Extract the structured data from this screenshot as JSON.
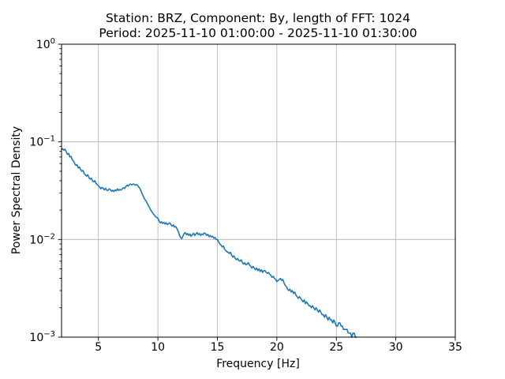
{
  "chart_data": {
    "type": "line",
    "title": "Station: BRZ, Component: By, length of FFT: 1024",
    "subtitle": "Period: 2025-11-10 01:00:00 - 2025-11-10 01:30:00",
    "xlabel": "Frequency [Hz]",
    "ylabel": "Power Spectral Density",
    "xscale": "linear",
    "yscale": "log",
    "xlim": [
      1.9,
      35
    ],
    "ylim": [
      0.001,
      1.0
    ],
    "grid": true,
    "legend": false,
    "xticks": [
      5,
      10,
      15,
      20,
      25,
      30,
      35
    ],
    "yticks": [
      1.0,
      0.1,
      0.01,
      0.001
    ],
    "line_color": "#1f77b4",
    "grid_color": "#b0b0b0",
    "background_color": "#ffffff",
    "series": [
      {
        "name": "psd",
        "x_start": 1.9,
        "x_step": 0.1,
        "values": [
          0.083,
          0.085,
          0.082,
          0.084,
          0.079,
          0.0745,
          0.076,
          0.07,
          0.071,
          0.0655,
          0.064,
          0.06,
          0.0575,
          0.0585,
          0.054,
          0.0555,
          0.052,
          0.05,
          0.051,
          0.0475,
          0.046,
          0.0445,
          0.046,
          0.043,
          0.0415,
          0.0425,
          0.04,
          0.039,
          0.04,
          0.0375,
          0.0365,
          0.0355,
          0.0345,
          0.033,
          0.0342,
          0.0335,
          0.0322,
          0.0335,
          0.032,
          0.0318,
          0.033,
          0.0325,
          0.0312,
          0.032,
          0.031,
          0.0322,
          0.0315,
          0.033,
          0.0318,
          0.0326,
          0.032,
          0.033,
          0.034,
          0.0333,
          0.0348,
          0.036,
          0.0352,
          0.0365,
          0.037,
          0.0362,
          0.037,
          0.0368,
          0.036,
          0.0366,
          0.0358,
          0.0344,
          0.033,
          0.031,
          0.029,
          0.0272,
          0.0258,
          0.0248,
          0.0235,
          0.0222,
          0.0212,
          0.02,
          0.0192,
          0.0184,
          0.0178,
          0.0172,
          0.0168,
          0.0165,
          0.0155,
          0.0148,
          0.0152,
          0.0146,
          0.015,
          0.0144,
          0.0148,
          0.0142,
          0.0146,
          0.0148,
          0.0142,
          0.0137,
          0.0141,
          0.0134,
          0.0136,
          0.0129,
          0.0122,
          0.0112,
          0.0105,
          0.0102,
          0.0108,
          0.0115,
          0.0118,
          0.0112,
          0.0115,
          0.011,
          0.0114,
          0.0108,
          0.0112,
          0.0116,
          0.011,
          0.0114,
          0.0118,
          0.0112,
          0.0115,
          0.011,
          0.0114,
          0.0112,
          0.0117,
          0.0115,
          0.011,
          0.0113,
          0.0107,
          0.011,
          0.0106,
          0.0108,
          0.0103,
          0.0105,
          0.01,
          0.01,
          0.0095,
          0.009,
          0.0088,
          0.0084,
          0.0086,
          0.008,
          0.0077,
          0.0075,
          0.0074,
          0.0072,
          0.0074,
          0.0069,
          0.0066,
          0.0068,
          0.0064,
          0.0062,
          0.0064,
          0.0061,
          0.006,
          0.0062,
          0.0058,
          0.0056,
          0.0058,
          0.0055,
          0.0056,
          0.0058,
          0.0055,
          0.0053,
          0.0051,
          0.0053,
          0.0051,
          0.0049,
          0.0051,
          0.0048,
          0.005,
          0.0047,
          0.0049,
          0.0046,
          0.0048,
          0.0048,
          0.0046,
          0.0045,
          0.0046,
          0.0044,
          0.0043,
          0.0041,
          0.0042,
          0.004,
          0.0039,
          0.0037,
          0.0038,
          0.0039,
          0.004,
          0.0038,
          0.0039,
          0.0036,
          0.0034,
          0.0033,
          0.0031,
          0.003,
          0.0031,
          0.0029,
          0.003,
          0.0028,
          0.0029,
          0.0027,
          0.0026,
          0.0025,
          0.0026,
          0.0025,
          0.0024,
          0.0023,
          0.0024,
          0.0022,
          0.0023,
          0.0022,
          0.0021,
          0.0021,
          0.002,
          0.0021,
          0.002,
          0.0019,
          0.002,
          0.0019,
          0.0018,
          0.0019,
          0.0018,
          0.0017,
          0.0017,
          0.0016,
          0.0017,
          0.0016,
          0.0015,
          0.0016,
          0.0015,
          0.0015,
          0.0014,
          0.0015,
          0.0014,
          0.0013,
          0.0013,
          0.0014,
          0.0014,
          0.0013,
          0.0013,
          0.0012,
          0.0012,
          0.0012,
          0.0012,
          0.0011,
          0.0011,
          0.0011,
          0.001,
          0.0011,
          0.0011,
          0.001,
          0.001
        ]
      }
    ]
  }
}
